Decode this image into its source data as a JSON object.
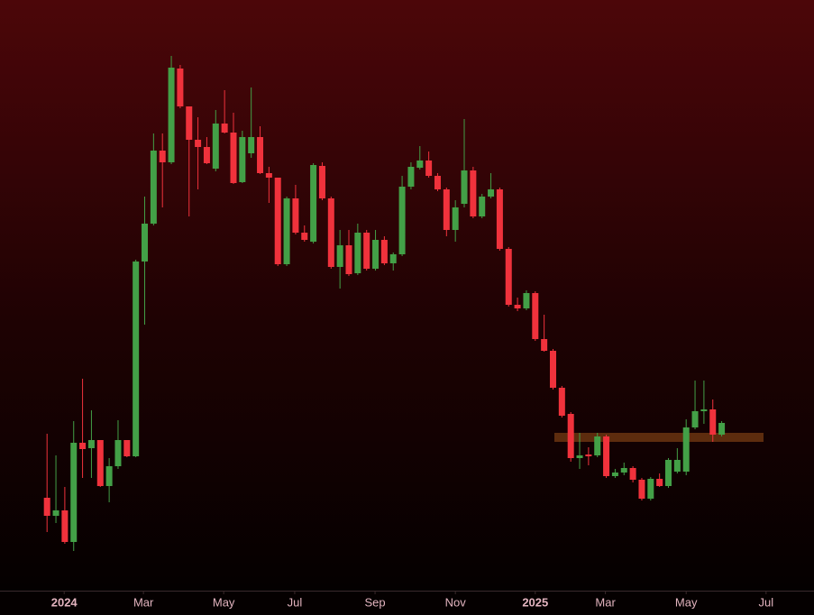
{
  "chart_data": {
    "type": "candlestick",
    "categories": [
      null,
      null,
      null,
      null,
      null,
      null,
      null,
      null,
      null,
      null,
      null,
      null,
      null,
      null,
      null,
      null,
      null,
      null,
      null,
      null,
      null,
      null,
      null,
      null,
      null,
      null,
      null,
      null,
      null,
      null,
      null,
      null,
      null,
      null,
      null,
      null,
      null,
      null,
      null,
      null,
      null,
      null,
      null,
      null,
      null,
      null,
      null,
      null,
      null,
      null,
      null,
      null,
      null,
      null,
      null,
      null,
      null,
      null,
      null,
      null,
      null,
      null,
      null,
      null,
      null,
      null,
      null,
      null,
      null,
      null,
      null,
      null,
      null,
      null,
      null,
      null,
      null
    ],
    "open": [
      98,
      78,
      84,
      49,
      159,
      153,
      162,
      111,
      133,
      162,
      144,
      360,
      402,
      483,
      470,
      574,
      532,
      495,
      487,
      463,
      513,
      503,
      448,
      480,
      498,
      458,
      453,
      357,
      430,
      392,
      382,
      466,
      430,
      354,
      378,
      347,
      392,
      352,
      384,
      358,
      368,
      443,
      464,
      472,
      455,
      440,
      395,
      424,
      461,
      410,
      432,
      440,
      374,
      312,
      308,
      325,
      274,
      261,
      220,
      191,
      142,
      146,
      145,
      166,
      122,
      126,
      131,
      118,
      97,
      119,
      111,
      127,
      127,
      176,
      194,
      196,
      168
    ],
    "high": [
      169,
      145,
      110,
      183,
      230,
      195,
      162,
      142,
      184,
      162,
      362,
      432,
      502,
      502,
      588,
      578,
      532,
      520,
      498,
      528,
      550,
      525,
      505,
      553,
      510,
      465,
      453,
      432,
      445,
      400,
      469,
      470,
      432,
      395,
      395,
      402,
      395,
      395,
      388,
      370,
      455,
      470,
      488,
      482,
      458,
      442,
      428,
      518,
      465,
      435,
      458,
      442,
      376,
      320,
      328,
      327,
      301,
      263,
      222,
      193,
      170,
      154,
      170,
      168,
      130,
      137,
      133,
      120,
      121,
      125,
      142,
      153,
      185,
      228,
      228,
      207,
      183
    ],
    "low": [
      60,
      70,
      47,
      39,
      120,
      120,
      110,
      93,
      130,
      143,
      143,
      290,
      400,
      420,
      468,
      530,
      410,
      440,
      468,
      460,
      502,
      446,
      447,
      475,
      457,
      425,
      355,
      355,
      390,
      382,
      380,
      428,
      352,
      330,
      344,
      345,
      350,
      350,
      356,
      350,
      366,
      440,
      462,
      453,
      438,
      388,
      382,
      420,
      408,
      408,
      430,
      372,
      310,
      305,
      306,
      272,
      260,
      218,
      187,
      138,
      130,
      134,
      143,
      120,
      120,
      123,
      115,
      95,
      95,
      110,
      109,
      125,
      123,
      174,
      180,
      160,
      166
    ],
    "close": [
      78,
      84,
      49,
      159,
      152,
      162,
      111,
      133,
      162,
      144,
      360,
      402,
      483,
      470,
      575,
      532,
      495,
      487,
      469,
      513,
      503,
      447,
      498,
      498,
      458,
      453,
      357,
      430,
      392,
      384,
      467,
      430,
      354,
      378,
      346,
      392,
      352,
      384,
      358,
      368,
      443,
      465,
      472,
      455,
      440,
      395,
      420,
      461,
      410,
      432,
      440,
      374,
      312,
      308,
      325,
      274,
      261,
      220,
      189,
      142,
      145,
      144,
      166,
      122,
      126,
      131,
      118,
      97,
      119,
      111,
      140,
      140,
      176,
      194,
      196,
      168,
      181
    ],
    "up_color": "#43a047",
    "down_color": "#f0323c",
    "levels": [
      165
    ],
    "level_color": "#6b3410",
    "ylim": [
      0,
      650
    ],
    "xlim": [
      -5.3,
      86.4
    ],
    "xticks": [
      {
        "value": 1.93,
        "label": "2024"
      },
      {
        "value": 10.86,
        "label": "Mar"
      },
      {
        "value": 19.9,
        "label": "May"
      },
      {
        "value": 27.9,
        "label": "Jul"
      },
      {
        "value": 36.95,
        "label": "Sep"
      },
      {
        "value": 46.0,
        "label": "Nov"
      },
      {
        "value": 55.0,
        "label": "2025"
      },
      {
        "value": 62.9,
        "label": "Mar"
      },
      {
        "value": 72.0,
        "label": "May"
      },
      {
        "value": 81.0,
        "label": "Jul"
      }
    ]
  }
}
